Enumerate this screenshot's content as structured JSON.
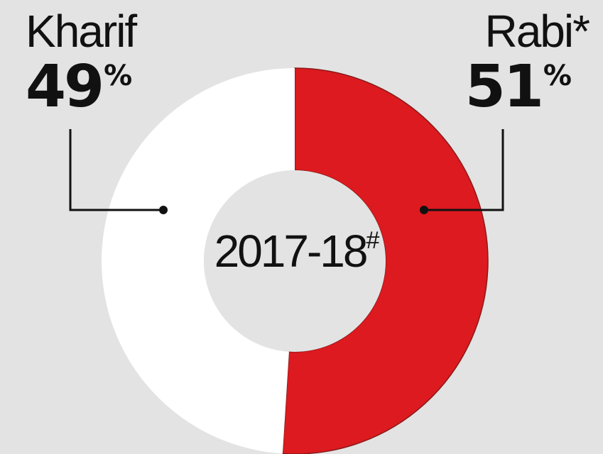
{
  "chart_data": {
    "type": "pie",
    "center_label": "2017-18",
    "center_label_marker": "#",
    "percent_symbol": "%",
    "slices": [
      {
        "name": "Kharif",
        "value": 49,
        "color": "#ffffff"
      },
      {
        "name": "Rabi*",
        "value": 51,
        "color": "#dc1a1f"
      }
    ],
    "colors": {
      "background": "#e3e3e3",
      "leader_line": "#111111",
      "slice_edge": "#8a1a1a"
    }
  }
}
